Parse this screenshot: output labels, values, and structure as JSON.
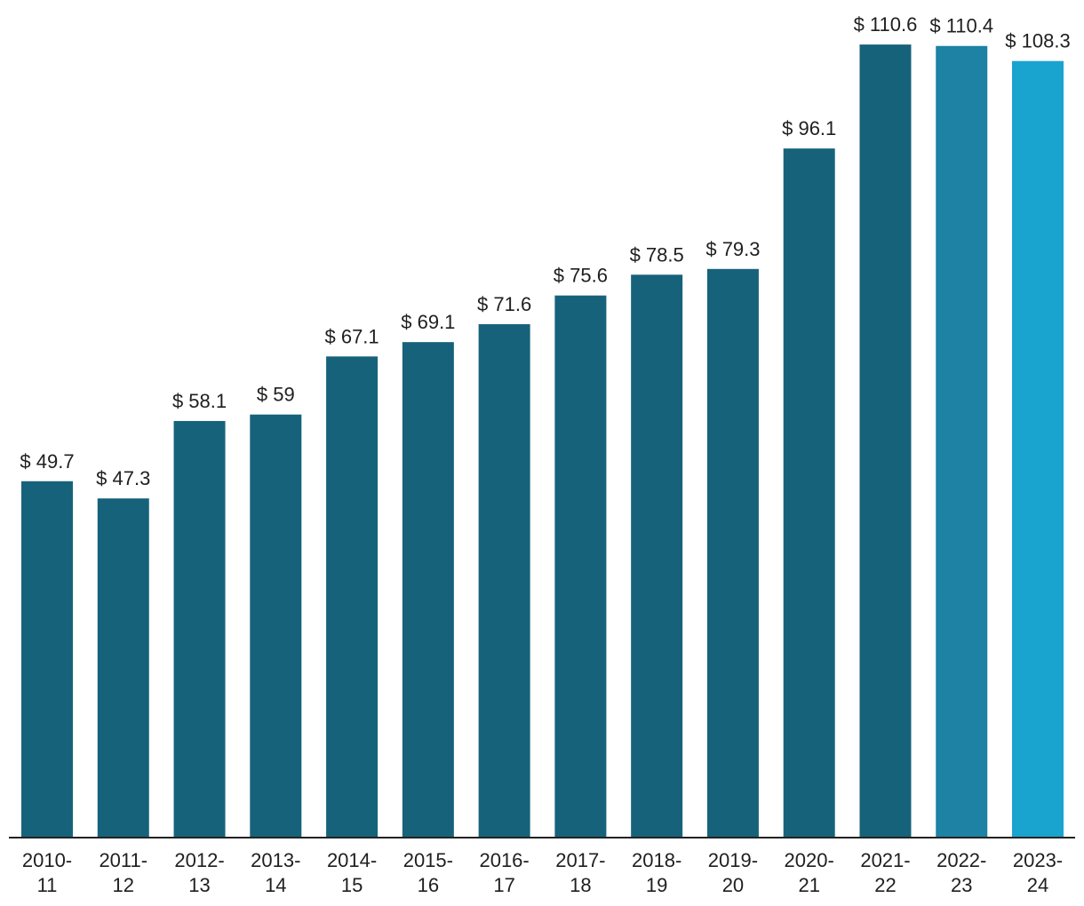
{
  "chart_data": {
    "type": "bar",
    "title": "",
    "xlabel": "",
    "ylabel": "",
    "value_prefix": "$ ",
    "ylim": [
      0,
      112
    ],
    "grid": false,
    "categories": [
      [
        "2010-",
        "11"
      ],
      [
        "2011-",
        "12"
      ],
      [
        "2012-",
        "13"
      ],
      [
        "2013-",
        "14"
      ],
      [
        "2014-",
        "15"
      ],
      [
        "2015-",
        "16"
      ],
      [
        "2016-",
        "17"
      ],
      [
        "2017-",
        "18"
      ],
      [
        "2018-",
        "19"
      ],
      [
        "2019-",
        "20"
      ],
      [
        "2020-",
        "21"
      ],
      [
        "2021-",
        "22"
      ],
      [
        "2022-",
        "23"
      ],
      [
        "2023-",
        "24"
      ]
    ],
    "values": [
      49.7,
      47.3,
      58.1,
      59,
      67.1,
      69.1,
      71.6,
      75.6,
      78.5,
      79.3,
      96.1,
      110.6,
      110.4,
      108.3
    ],
    "value_labels": [
      "$ 49.7",
      "$ 47.3",
      "$ 58.1",
      "$ 59",
      "$ 67.1",
      "$ 69.1",
      "$ 71.6",
      "$ 75.6",
      "$ 78.5",
      "$ 79.3",
      "$ 96.1",
      "$ 110.6",
      "$ 110.4",
      "$ 108.3"
    ],
    "colors": [
      "#17627b",
      "#17627b",
      "#17627b",
      "#17627b",
      "#17627b",
      "#17627b",
      "#17627b",
      "#17627b",
      "#17627b",
      "#17627b",
      "#17627b",
      "#17627b",
      "#1d82a3",
      "#19a3cf"
    ],
    "axis_color": "#222222"
  }
}
